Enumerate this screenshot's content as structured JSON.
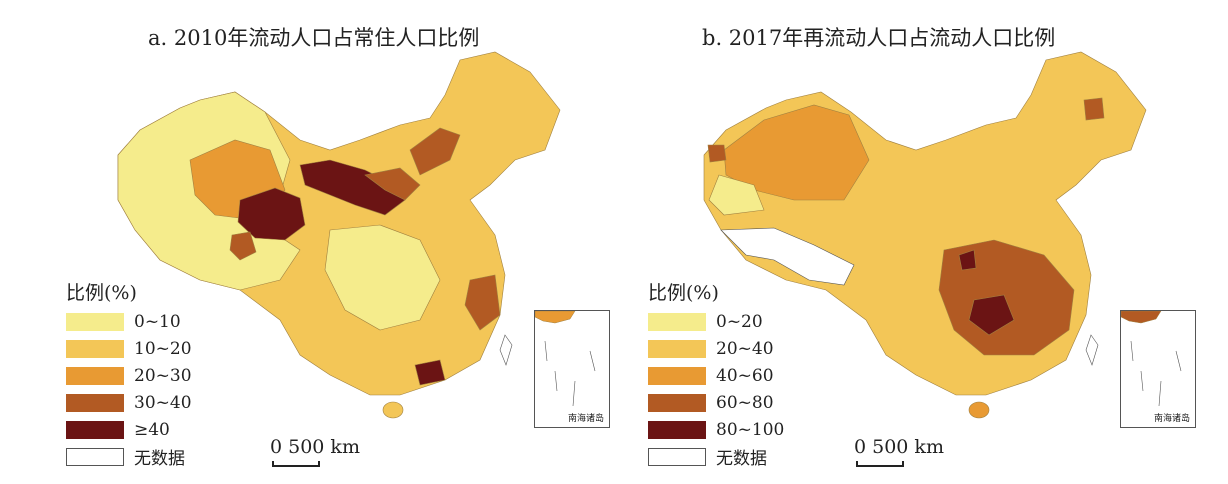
{
  "panels": [
    {
      "title": "a. 2010年流动人口占常住人口比例",
      "legend_title": "比例(%)",
      "legend": [
        {
          "label": "0~10",
          "color": "#f5ec8c"
        },
        {
          "label": "10~20",
          "color": "#f3c657"
        },
        {
          "label": "20~30",
          "color": "#e89a33"
        },
        {
          "label": "30~40",
          "color": "#b25a23"
        },
        {
          "label": "≥40",
          "color": "#6b1414"
        },
        {
          "label": "无数据",
          "color": "#ffffff"
        }
      ]
    },
    {
      "title": "b. 2017年再流动人口占流动人口比例",
      "legend_title": "比例(%)",
      "legend": [
        {
          "label": "0~20",
          "color": "#f5ec8c"
        },
        {
          "label": "20~40",
          "color": "#f3c657"
        },
        {
          "label": "40~60",
          "color": "#e89a33"
        },
        {
          "label": "60~80",
          "color": "#b25a23"
        },
        {
          "label": "80~100",
          "color": "#6b1414"
        },
        {
          "label": "无数据",
          "color": "#ffffff"
        }
      ]
    }
  ],
  "scale_label": "0 500 km",
  "inset_label": "南海诸岛"
}
